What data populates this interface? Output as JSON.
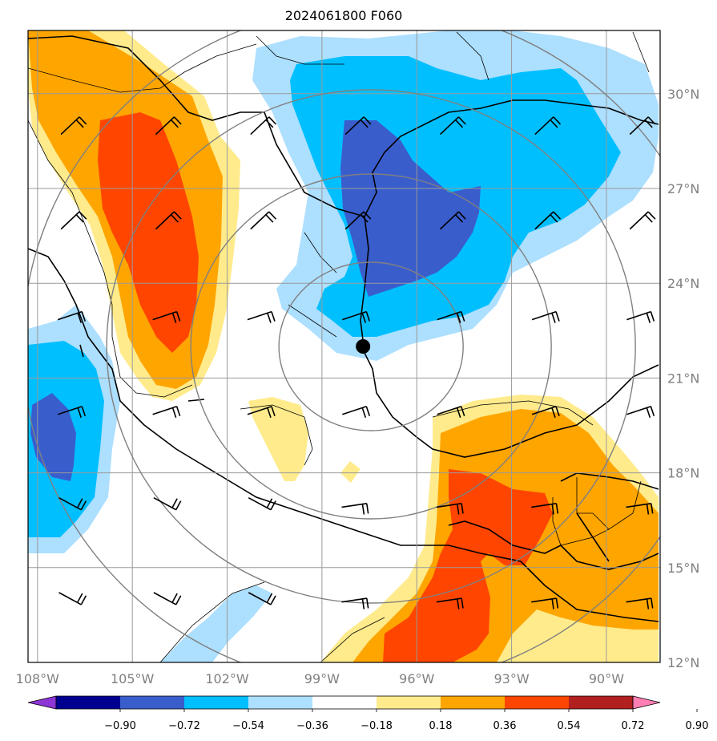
{
  "title": "2024061800 F060",
  "colors": {
    "lt_blue": "#addfff",
    "blue": "#00bfff",
    "dk_blue": "#3a5dcc",
    "navy": "#000090",
    "purple": "#8e35d6",
    "lt_yellow": "#ffeb8c",
    "orange": "#ffa500",
    "red_orange": "#ff4500",
    "dk_red": "#b21f1f",
    "pink": "#ff7fb4",
    "grid": "#9a9a9a",
    "ring": "#808080"
  },
  "axes": {
    "lon_labels": [
      "108°W",
      "105°W",
      "102°W",
      "99°W",
      "96°W",
      "93°W",
      "90°W"
    ],
    "lat_labels": [
      "30°N",
      "27°N",
      "24°N",
      "21°N",
      "18°N",
      "15°N",
      "12°N"
    ]
  },
  "colorbar": {
    "ticks": [
      "−0.90",
      "−0.72",
      "−0.54",
      "−0.36",
      "−0.18",
      "0.18",
      "0.36",
      "0.54",
      "0.72",
      "0.90"
    ],
    "segment_colors": [
      "#000090",
      "#3a5dcc",
      "#00bfff",
      "#addfff",
      "#ffffff",
      "#ffeb8c",
      "#ffa500",
      "#ff4500",
      "#b21f1f"
    ],
    "under_color": "#8e35d6",
    "over_color": "#ff7fb4"
  },
  "center_marker": {
    "lon": -97.7,
    "lat": 22.0
  },
  "range_rings": "concentric range rings around center marker",
  "wind_barbs": "wind barbs on regular lat/lon grid"
}
